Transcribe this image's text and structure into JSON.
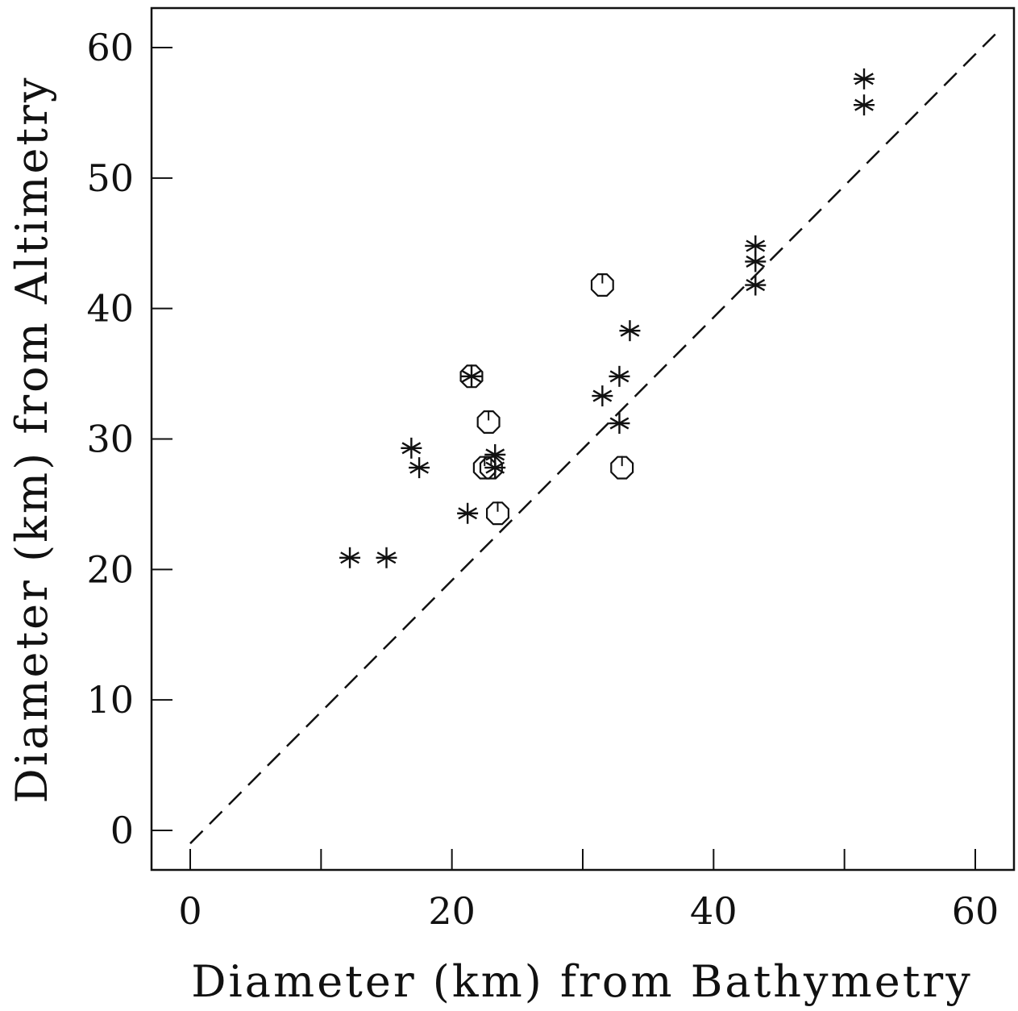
{
  "chart_data": {
    "type": "scatter",
    "title": "",
    "xlabel": "Diameter (km) from Bathymetry",
    "ylabel": "Diameter (km) from Altimetry",
    "xlim": [
      -3,
      63
    ],
    "ylim": [
      -3,
      63
    ],
    "x_ticks": [
      0,
      10,
      20,
      30,
      40,
      50,
      60
    ],
    "y_ticks": [
      0,
      10,
      20,
      30,
      40,
      50,
      60
    ],
    "x_tick_labels": [
      "0",
      "20",
      "40",
      "60"
    ],
    "y_tick_labels": [
      "0",
      "10",
      "20",
      "30",
      "40",
      "50",
      "60"
    ],
    "grid": false,
    "legend": "none",
    "reference_line": {
      "style": "dashed",
      "points": [
        [
          0,
          -1
        ],
        [
          62,
          61.5
        ]
      ]
    },
    "series": [
      {
        "marker": "asterisk",
        "points": [
          [
            12.2,
            20.9
          ],
          [
            15.0,
            20.9
          ],
          [
            16.9,
            29.3
          ],
          [
            17.5,
            27.8
          ],
          [
            21.2,
            24.3
          ],
          [
            21.5,
            34.8
          ],
          [
            23.3,
            28.8
          ],
          [
            23.3,
            27.8
          ],
          [
            31.5,
            33.3
          ],
          [
            32.8,
            34.8
          ],
          [
            32.8,
            31.2
          ],
          [
            33.6,
            38.3
          ],
          [
            43.2,
            44.8
          ],
          [
            43.2,
            43.6
          ],
          [
            43.2,
            41.8
          ],
          [
            51.5,
            57.6
          ],
          [
            51.5,
            55.6
          ]
        ]
      },
      {
        "marker": "octagon",
        "points": [
          [
            21.5,
            34.8
          ],
          [
            22.5,
            27.8
          ],
          [
            22.8,
            31.3
          ],
          [
            23.0,
            27.8
          ],
          [
            23.5,
            24.3
          ],
          [
            31.5,
            41.8
          ],
          [
            33.0,
            27.8
          ]
        ]
      }
    ]
  }
}
